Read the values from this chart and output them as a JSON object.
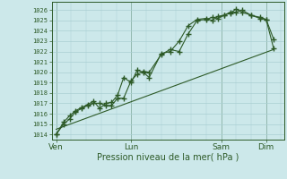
{
  "xlabel": "Pression niveau de la mer( hPa )",
  "bg_color": "#cce8ea",
  "grid_color": "#aacfd2",
  "line_color": "#2d5a27",
  "ylim": [
    1013.5,
    1026.8
  ],
  "yticks": [
    1014,
    1015,
    1016,
    1017,
    1018,
    1019,
    1020,
    1021,
    1022,
    1023,
    1024,
    1025,
    1026
  ],
  "day_labels": [
    "Ven",
    "Lun",
    "Sam",
    "Dim"
  ],
  "day_positions": [
    0.0,
    2.5,
    5.5,
    7.0
  ],
  "xlim": [
    -0.15,
    7.6
  ],
  "line1_x": [
    0.0,
    0.25,
    0.45,
    0.65,
    0.85,
    1.05,
    1.25,
    1.45,
    1.65,
    1.85,
    2.05,
    2.25,
    2.5,
    2.7,
    2.9,
    3.1,
    3.5,
    3.8,
    4.1,
    4.4,
    4.7,
    5.0,
    5.2,
    5.4,
    5.6,
    5.8,
    6.0,
    6.2,
    6.5,
    6.8,
    7.0,
    7.25
  ],
  "line1_y": [
    1014.0,
    1015.0,
    1015.5,
    1016.2,
    1016.5,
    1016.8,
    1017.0,
    1017.0,
    1016.8,
    1016.8,
    1017.5,
    1017.5,
    1019.2,
    1019.8,
    1020.1,
    1020.0,
    1021.7,
    1022.2,
    1022.0,
    1023.7,
    1025.0,
    1025.1,
    1025.3,
    1025.2,
    1025.5,
    1025.8,
    1025.8,
    1026.0,
    1025.5,
    1025.3,
    1025.1,
    1022.3
  ],
  "line2_x": [
    0.0,
    0.25,
    0.45,
    0.65,
    0.85,
    1.05,
    1.25,
    1.45,
    1.65,
    1.85,
    2.05,
    2.25,
    2.5,
    2.7,
    2.9,
    3.1,
    3.5,
    3.8,
    4.1,
    4.4,
    4.7,
    5.0,
    5.2,
    5.4,
    5.6,
    5.8,
    6.0,
    6.2,
    6.5,
    6.8,
    7.0,
    7.25
  ],
  "line2_y": [
    1014.0,
    1015.2,
    1015.8,
    1016.3,
    1016.6,
    1016.9,
    1017.2,
    1016.5,
    1017.0,
    1017.1,
    1017.8,
    1019.5,
    1019.0,
    1020.2,
    1020.0,
    1019.5,
    1021.8,
    1022.0,
    1023.0,
    1024.5,
    1025.1,
    1025.2,
    1025.0,
    1025.4,
    1025.5,
    1025.7,
    1026.1,
    1025.8,
    1025.5,
    1025.2,
    1025.1,
    1023.2
  ],
  "line3_x": [
    0.0,
    7.25
  ],
  "line3_y": [
    1014.5,
    1022.2
  ],
  "marker": "+",
  "marker_size": 4.0,
  "marker_lw": 1.0
}
